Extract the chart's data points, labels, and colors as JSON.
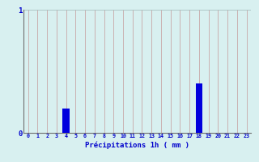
{
  "hours": [
    0,
    1,
    2,
    3,
    4,
    5,
    6,
    7,
    8,
    9,
    10,
    11,
    12,
    13,
    14,
    15,
    16,
    17,
    18,
    19,
    20,
    21,
    22,
    23
  ],
  "values": [
    0,
    0,
    0,
    0,
    0.2,
    0,
    0,
    0,
    0,
    0,
    0,
    0,
    0,
    0,
    0,
    0,
    0,
    0,
    0.4,
    0,
    0,
    0,
    0,
    0
  ],
  "bar_color": "#0000dd",
  "background_color": "#d8f0f0",
  "grid_color_v": "#c8a8a8",
  "grid_color_h": "#a8c0c0",
  "axis_label_color": "#0000cc",
  "xlabel": "Précipitations 1h ( mm )",
  "ylim": [
    0,
    1.0
  ],
  "xlim": [
    -0.5,
    23.5
  ]
}
